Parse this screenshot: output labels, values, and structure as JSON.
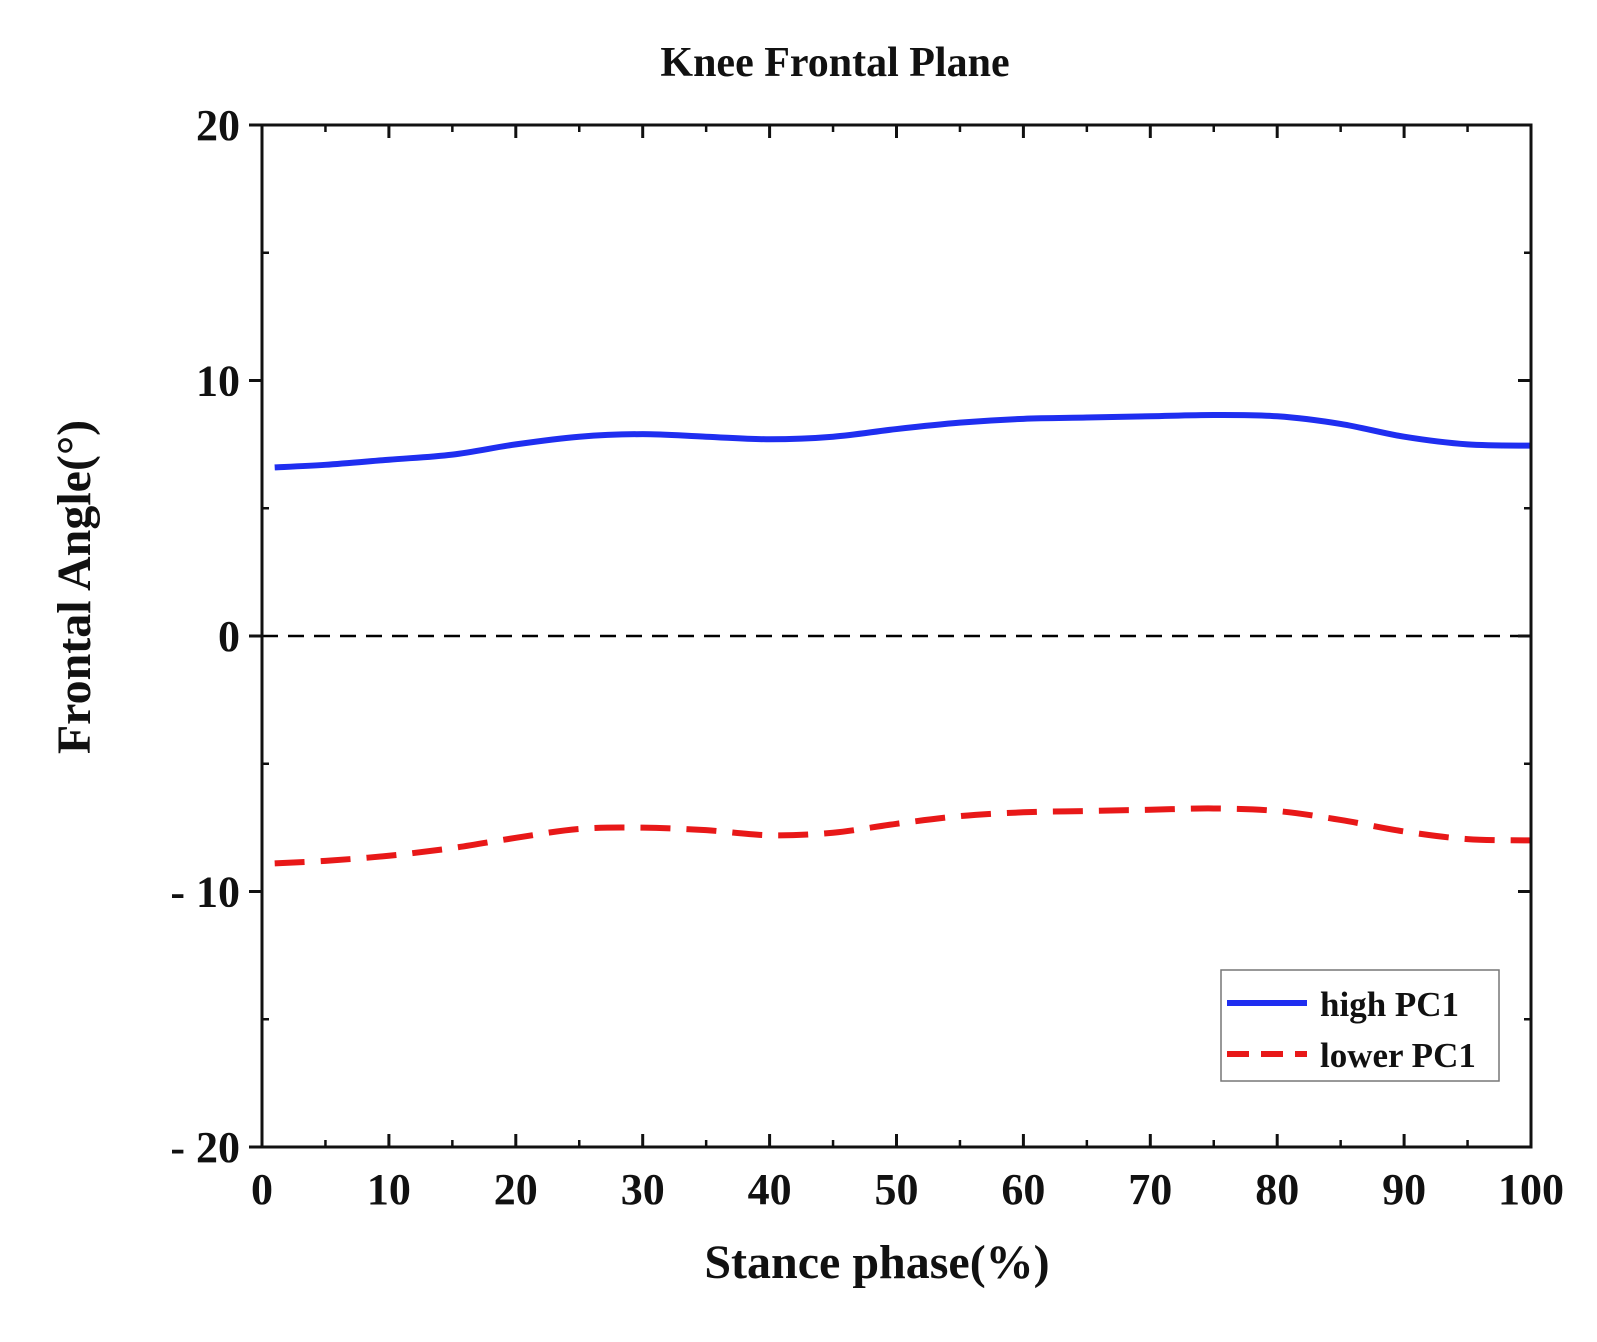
{
  "chart_data": {
    "type": "line",
    "title": "Knee Frontal Plane",
    "xlabel": "Stance phase(%)",
    "ylabel": "Frontal Angle(°)",
    "xlim": [
      0,
      100
    ],
    "ylim": [
      -20,
      20
    ],
    "x_ticks": [
      0,
      10,
      20,
      30,
      40,
      50,
      60,
      70,
      80,
      90,
      100
    ],
    "y_ticks": [
      -20,
      -10,
      0,
      10,
      20
    ],
    "y_tick_labels": [
      "- 20",
      "- 10",
      "0",
      "10",
      "20"
    ],
    "reference_line": {
      "y": 0,
      "style": "dashed",
      "color": "#000000"
    },
    "legend": {
      "position": "bottom-right"
    },
    "series": [
      {
        "name": "high PC1",
        "color": "#1f2ef0",
        "style": "solid",
        "x": [
          1,
          5,
          10,
          15,
          20,
          25,
          30,
          35,
          40,
          45,
          50,
          55,
          60,
          65,
          70,
          75,
          80,
          85,
          90,
          95,
          100
        ],
        "values": [
          6.6,
          6.7,
          6.9,
          7.1,
          7.5,
          7.8,
          7.9,
          7.8,
          7.7,
          7.8,
          8.1,
          8.35,
          8.5,
          8.55,
          8.6,
          8.65,
          8.6,
          8.3,
          7.8,
          7.5,
          7.45
        ]
      },
      {
        "name": "lower PC1",
        "color": "#e81818",
        "style": "dashed",
        "x": [
          1,
          5,
          10,
          15,
          20,
          25,
          30,
          35,
          40,
          45,
          50,
          55,
          60,
          65,
          70,
          75,
          80,
          85,
          90,
          95,
          100
        ],
        "values": [
          -8.9,
          -8.8,
          -8.6,
          -8.3,
          -7.9,
          -7.55,
          -7.5,
          -7.6,
          -7.8,
          -7.7,
          -7.35,
          -7.05,
          -6.9,
          -6.85,
          -6.8,
          -6.75,
          -6.85,
          -7.2,
          -7.65,
          -7.95,
          -8.0
        ]
      }
    ]
  }
}
